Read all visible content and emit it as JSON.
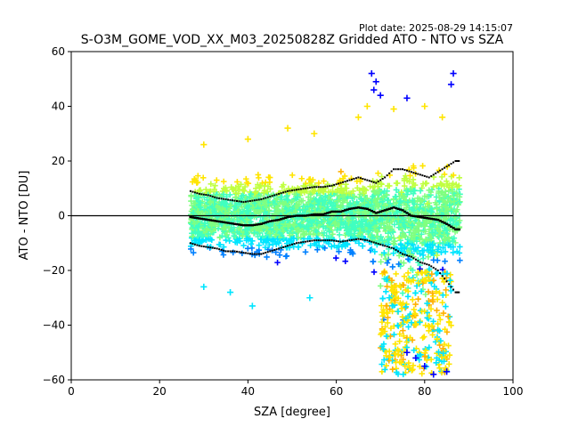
{
  "plot_date": "Plot date: 2025-08-29 14:15:07",
  "chart_data": {
    "type": "scatter",
    "title": "S-O3M_GOME_VOD_XX_M03_20250828Z Gridded ATO - NTO vs SZA",
    "xlabel": "SZA [degree]",
    "ylabel": "ATO - NTO [DU]",
    "xlim": [
      0,
      100
    ],
    "ylim": [
      -60,
      60
    ],
    "xticks": [
      0,
      20,
      40,
      60,
      80,
      100
    ],
    "yticks": [
      -60,
      -40,
      -20,
      0,
      20,
      40,
      60
    ],
    "grid": false,
    "reference_line": {
      "y": 0,
      "color": "#000000"
    },
    "marker": "+",
    "colormap": [
      "#0000ff",
      "#0080ff",
      "#00e5ff",
      "#40ffc0",
      "#80ff80",
      "#c0ff40",
      "#ffe500",
      "#ffb000"
    ],
    "mean_series": {
      "x": [
        27,
        29,
        31,
        33,
        35,
        37,
        39,
        41,
        43,
        45,
        47,
        49,
        51,
        53,
        55,
        57,
        59,
        61,
        63,
        65,
        67,
        69,
        71,
        73,
        75,
        77,
        79,
        81,
        83,
        85,
        87,
        88
      ],
      "y": [
        -0.5,
        -1,
        -1.5,
        -2,
        -2.5,
        -3,
        -3.5,
        -3.5,
        -3,
        -2,
        -1.5,
        -0.5,
        0,
        0,
        0.5,
        0.5,
        1.5,
        1.5,
        2.5,
        3,
        2.5,
        1,
        2,
        3,
        2,
        0,
        -0.5,
        -1,
        -1.5,
        -3,
        -5,
        -5
      ]
    },
    "upper_series": {
      "x": [
        27,
        29,
        31,
        33,
        35,
        37,
        39,
        41,
        43,
        45,
        47,
        49,
        51,
        53,
        55,
        57,
        59,
        61,
        63,
        65,
        67,
        69,
        71,
        73,
        75,
        77,
        79,
        81,
        83,
        85,
        87,
        88
      ],
      "y": [
        9,
        8,
        7.5,
        6.5,
        6,
        5.5,
        5,
        5.5,
        6,
        7,
        8,
        9,
        9.5,
        10,
        10.5,
        10.5,
        11,
        12,
        13,
        14,
        13,
        12,
        14,
        17,
        17,
        16,
        15,
        14,
        16,
        18,
        20,
        20
      ]
    },
    "lower_series": {
      "x": [
        27,
        29,
        31,
        33,
        35,
        37,
        39,
        41,
        43,
        45,
        47,
        49,
        51,
        53,
        55,
        57,
        59,
        61,
        63,
        65,
        67,
        69,
        71,
        73,
        75,
        77,
        79,
        81,
        83,
        85,
        87,
        88
      ],
      "y": [
        -10,
        -11,
        -11.5,
        -12,
        -13,
        -13,
        -13.5,
        -14,
        -14,
        -13,
        -12,
        -11,
        -10,
        -9.5,
        -9,
        -9,
        -9,
        -9.5,
        -9,
        -8.5,
        -9,
        -10,
        -11,
        -12,
        -14,
        -15,
        -17,
        -18,
        -20,
        -24,
        -28,
        -28
      ]
    },
    "point_cloud": {
      "x_range": [
        27,
        88
      ],
      "y_core_halfwidth": 18,
      "extreme_points": [
        {
          "x": 68,
          "y": 52
        },
        {
          "x": 69,
          "y": 49
        },
        {
          "x": 68.5,
          "y": 46
        },
        {
          "x": 70,
          "y": 44
        },
        {
          "x": 76,
          "y": 43
        },
        {
          "x": 80,
          "y": 40
        },
        {
          "x": 86.5,
          "y": 52
        },
        {
          "x": 86,
          "y": 48
        },
        {
          "x": 78,
          "y": -52
        },
        {
          "x": 80,
          "y": -55
        },
        {
          "x": 82,
          "y": -58
        },
        {
          "x": 85,
          "y": -57
        },
        {
          "x": 76,
          "y": -50
        },
        {
          "x": 72,
          "y": -30
        },
        {
          "x": 74,
          "y": -35
        },
        {
          "x": 30,
          "y": -26
        },
        {
          "x": 36,
          "y": -28
        },
        {
          "x": 41,
          "y": -33
        },
        {
          "x": 54,
          "y": -30
        },
        {
          "x": 30,
          "y": 26
        },
        {
          "x": 40,
          "y": 28
        },
        {
          "x": 49,
          "y": 32
        },
        {
          "x": 55,
          "y": 30
        },
        {
          "x": 65,
          "y": 36
        },
        {
          "x": 67,
          "y": 40
        },
        {
          "x": 73,
          "y": 39
        },
        {
          "x": 84,
          "y": 36
        }
      ]
    }
  }
}
